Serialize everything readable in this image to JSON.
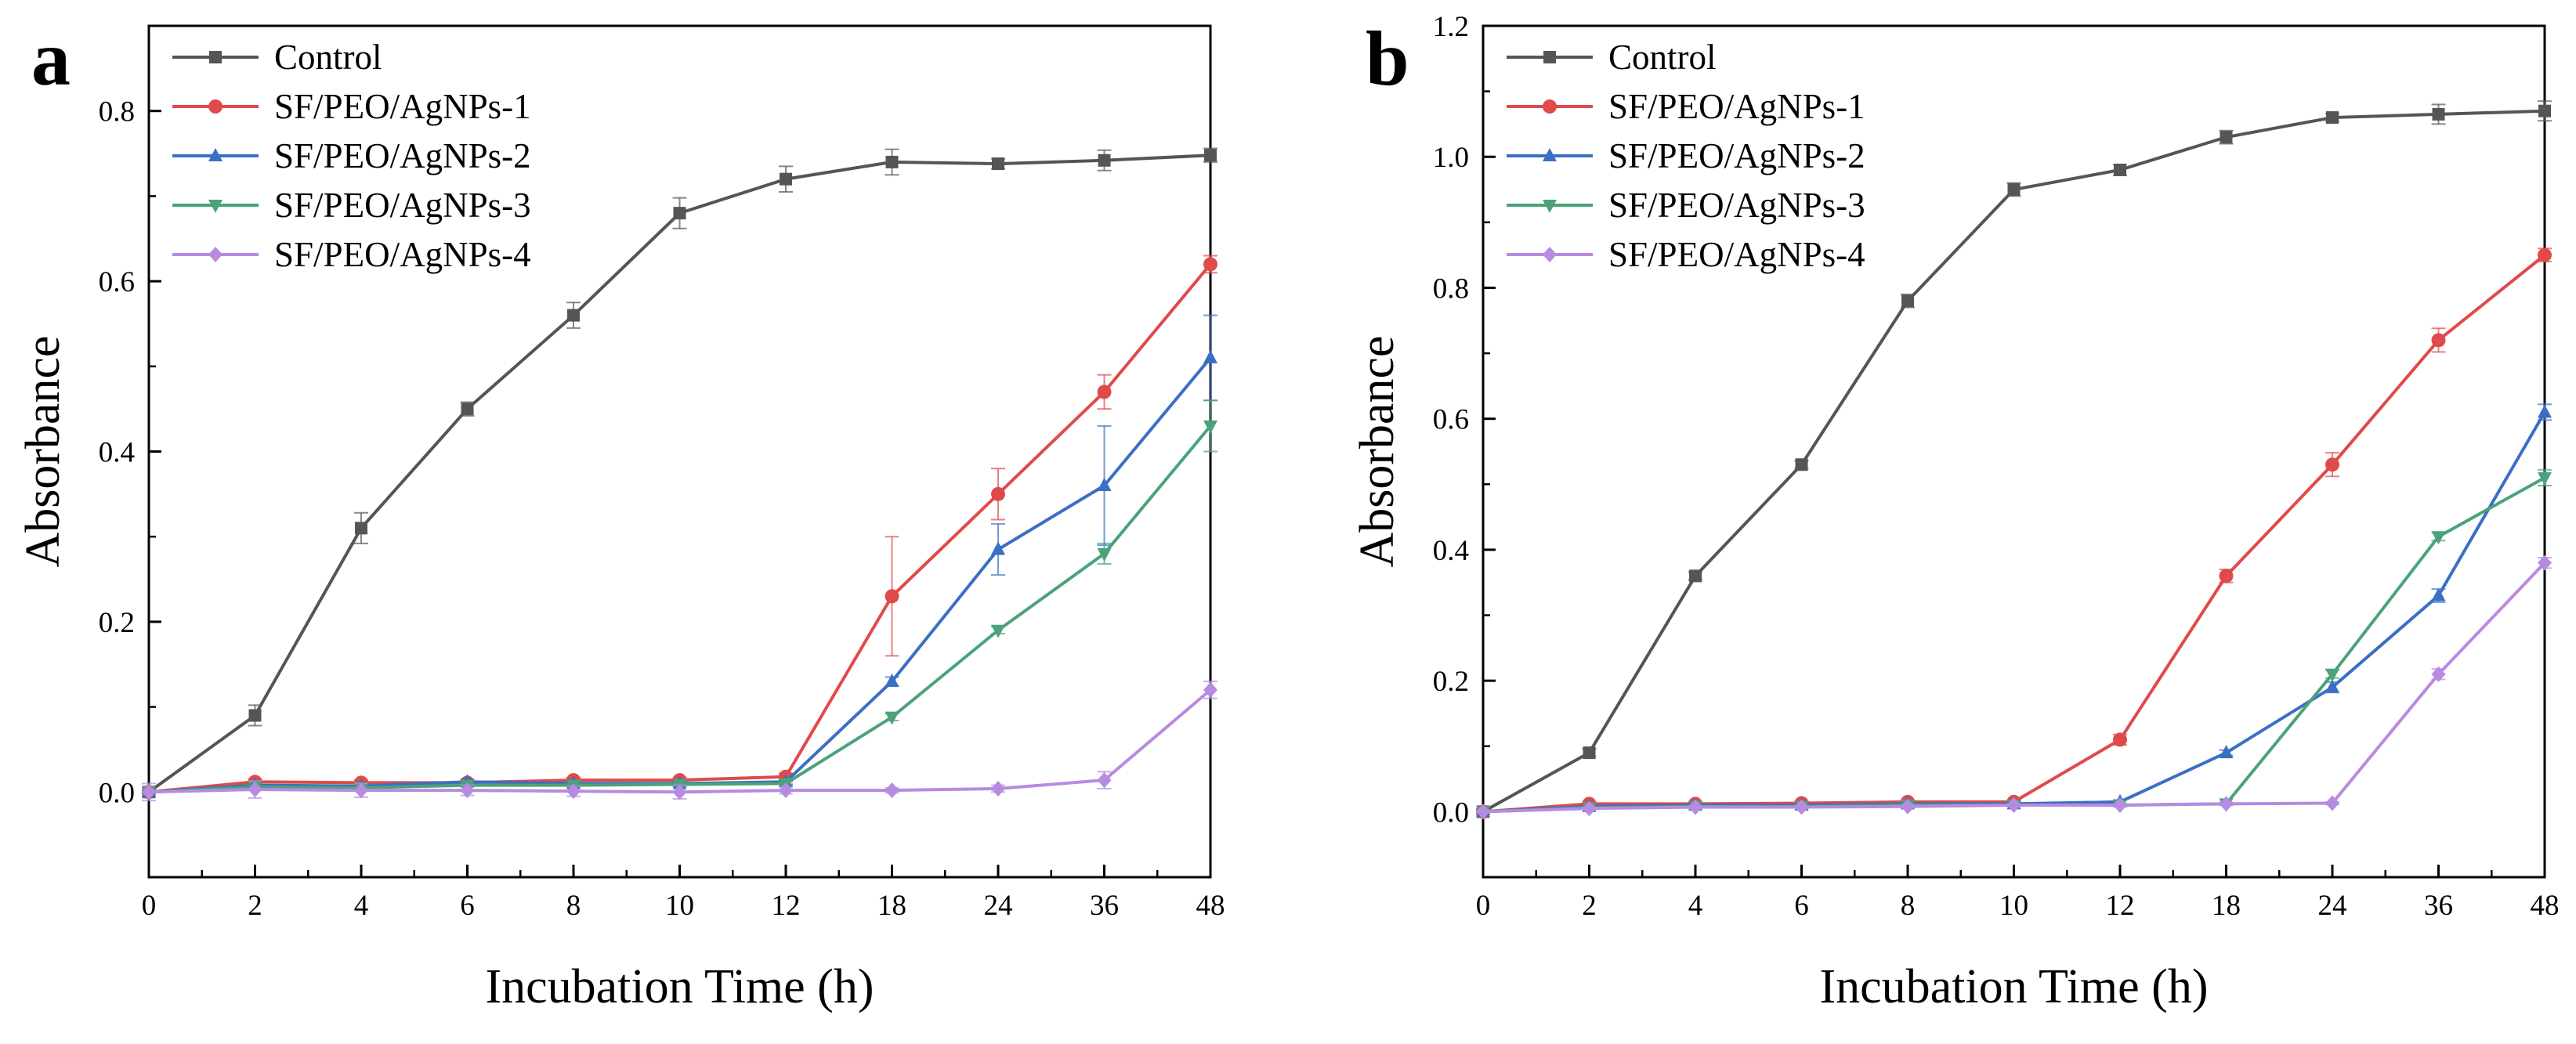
{
  "chart_data": [
    {
      "panel_label": "a",
      "type": "line",
      "categories": [
        "0",
        "2",
        "4",
        "6",
        "8",
        "10",
        "12",
        "18",
        "24",
        "36",
        "48"
      ],
      "xlabel": "Incubation Time (h)",
      "ylabel": "Absorbance",
      "ylim": [
        -0.1,
        0.9
      ],
      "yticks": [
        0.0,
        0.2,
        0.4,
        0.6,
        0.8
      ],
      "ytick_labels": [
        "0.0",
        "0.2",
        "0.4",
        "0.6",
        "0.8"
      ],
      "legend": "top-left",
      "grid": false,
      "series": [
        {
          "name": "Control",
          "color": "#555555",
          "marker": "square",
          "values": [
            0.0,
            0.09,
            0.31,
            0.45,
            0.56,
            0.68,
            0.72,
            0.74,
            0.738,
            0.742,
            0.748
          ],
          "errors": [
            0.005,
            0.012,
            0.018,
            0.008,
            0.015,
            0.018,
            0.015,
            0.015,
            0.006,
            0.012,
            0.008
          ]
        },
        {
          "name": "SF/PEO/AgNPs-1",
          "color": "#e04a4a",
          "marker": "circle",
          "values": [
            0.0,
            0.012,
            0.011,
            0.011,
            0.014,
            0.014,
            0.018,
            0.23,
            0.35,
            0.47,
            0.62
          ],
          "errors": [
            0.002,
            0.003,
            0.003,
            0.003,
            0.003,
            0.003,
            0.004,
            0.07,
            0.03,
            0.02,
            0.01
          ]
        },
        {
          "name": "SF/PEO/AgNPs-2",
          "color": "#3a6fc4",
          "marker": "triangle-up",
          "values": [
            0.0,
            0.008,
            0.007,
            0.012,
            0.01,
            0.01,
            0.012,
            0.13,
            0.285,
            0.36,
            0.51
          ],
          "errors": [
            0.002,
            0.003,
            0.003,
            0.003,
            0.003,
            0.003,
            0.003,
            0.005,
            0.03,
            0.07,
            0.05
          ]
        },
        {
          "name": "SF/PEO/AgNPs-3",
          "color": "#4aa37a",
          "marker": "triangle-down",
          "values": [
            0.0,
            0.006,
            0.005,
            0.008,
            0.008,
            0.009,
            0.01,
            0.088,
            0.19,
            0.28,
            0.43
          ],
          "errors": [
            0.002,
            0.002,
            0.002,
            0.002,
            0.002,
            0.002,
            0.002,
            0.004,
            0.004,
            0.012,
            0.03
          ]
        },
        {
          "name": "SF/PEO/AgNPs-4",
          "color": "#b78be0",
          "marker": "diamond",
          "values": [
            0.0,
            0.003,
            0.002,
            0.002,
            0.001,
            0.0,
            0.002,
            0.002,
            0.004,
            0.014,
            0.12
          ],
          "errors": [
            0.01,
            0.01,
            0.008,
            0.006,
            0.006,
            0.008,
            0.004,
            0.003,
            0.004,
            0.01,
            0.01
          ]
        }
      ]
    },
    {
      "panel_label": "b",
      "type": "line",
      "categories": [
        "0",
        "2",
        "4",
        "6",
        "8",
        "10",
        "12",
        "18",
        "24",
        "36",
        "48"
      ],
      "xlabel": "Incubation Time (h)",
      "ylabel": "Absorbance",
      "ylim": [
        -0.1,
        1.2
      ],
      "yticks": [
        0.0,
        0.2,
        0.4,
        0.6,
        0.8,
        1.0,
        1.2
      ],
      "ytick_labels": [
        "0.0",
        "0.2",
        "0.4",
        "0.6",
        "0.8",
        "1.0",
        "1.2"
      ],
      "legend": "top-left",
      "grid": false,
      "series": [
        {
          "name": "Control",
          "color": "#555555",
          "marker": "square",
          "values": [
            0.0,
            0.09,
            0.36,
            0.53,
            0.78,
            0.95,
            0.98,
            1.03,
            1.06,
            1.065,
            1.07
          ],
          "errors": [
            0.004,
            0.006,
            0.006,
            0.006,
            0.01,
            0.01,
            0.008,
            0.01,
            0.006,
            0.015,
            0.015
          ]
        },
        {
          "name": "SF/PEO/AgNPs-1",
          "color": "#e04a4a",
          "marker": "circle",
          "values": [
            0.0,
            0.012,
            0.012,
            0.013,
            0.015,
            0.015,
            0.11,
            0.36,
            0.53,
            0.72,
            0.85
          ],
          "errors": [
            0.002,
            0.003,
            0.003,
            0.003,
            0.003,
            0.003,
            0.008,
            0.01,
            0.018,
            0.018,
            0.01
          ]
        },
        {
          "name": "SF/PEO/AgNPs-2",
          "color": "#3a6fc4",
          "marker": "triangle-up",
          "values": [
            0.0,
            0.008,
            0.01,
            0.01,
            0.012,
            0.012,
            0.015,
            0.09,
            0.19,
            0.33,
            0.61
          ],
          "errors": [
            0.002,
            0.002,
            0.002,
            0.002,
            0.002,
            0.002,
            0.003,
            0.004,
            0.008,
            0.01,
            0.012
          ]
        },
        {
          "name": "SF/PEO/AgNPs-3",
          "color": "#4aa37a",
          "marker": "triangle-down",
          "values": [
            0.0,
            0.006,
            0.008,
            0.008,
            0.01,
            0.01,
            0.01,
            0.012,
            0.21,
            0.42,
            0.51
          ],
          "errors": [
            0.002,
            0.002,
            0.002,
            0.002,
            0.002,
            0.002,
            0.002,
            0.002,
            0.006,
            0.006,
            0.012
          ]
        },
        {
          "name": "SF/PEO/AgNPs-4",
          "color": "#b78be0",
          "marker": "diamond",
          "values": [
            0.0,
            0.005,
            0.007,
            0.007,
            0.008,
            0.01,
            0.01,
            0.012,
            0.013,
            0.21,
            0.38
          ],
          "errors": [
            0.002,
            0.002,
            0.002,
            0.002,
            0.002,
            0.002,
            0.002,
            0.002,
            0.002,
            0.008,
            0.008
          ]
        }
      ]
    }
  ]
}
